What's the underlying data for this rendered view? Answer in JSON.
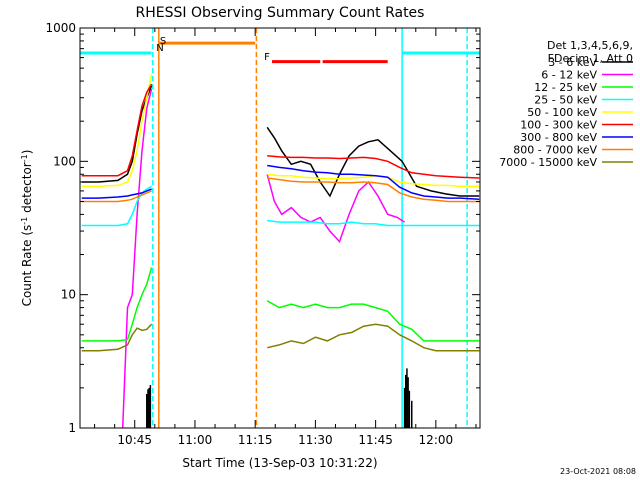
{
  "chart_data": {
    "type": "line",
    "title": "RHESSI Observing Summary Count Rates",
    "xlabel": "Start Time (13-Sep-03 10:31:22)",
    "ylabel": {
      "pre": "Count Rate (s",
      "sup1": "-1",
      "mid": " detector",
      "sup2": "-1",
      "post": ")"
    },
    "xlim": [
      10.5228,
      12.1833
    ],
    "ylim": [
      1,
      1000
    ],
    "yscale": "log",
    "xticks": [
      {
        "x": 10.75,
        "label": "10:45"
      },
      {
        "x": 11.0,
        "label": "11:00"
      },
      {
        "x": 11.25,
        "label": "11:15"
      },
      {
        "x": 11.5,
        "label": "11:30"
      },
      {
        "x": 11.75,
        "label": "11:45"
      },
      {
        "x": 12.0,
        "label": "12:00"
      }
    ],
    "yticks": [
      {
        "y": 1,
        "label": "1"
      },
      {
        "y": 10,
        "label": "10"
      },
      {
        "y": 100,
        "label": "100"
      },
      {
        "y": 1000,
        "label": "1000"
      }
    ],
    "legend": {
      "header1": "Det 1,3,4,5,6,9,",
      "header2": "FDecim 1, Att 0",
      "position": "right-outside"
    },
    "series": [
      {
        "name": "3 - 6 keV",
        "color": "#000000",
        "x": [
          10.53,
          10.6,
          10.68,
          10.72,
          10.74,
          10.76,
          10.78,
          10.8,
          10.82,
          11.3,
          11.33,
          11.36,
          11.4,
          11.44,
          11.48,
          11.52,
          11.56,
          11.6,
          11.64,
          11.68,
          11.72,
          11.76,
          11.8,
          11.86,
          11.92,
          11.98,
          12.04,
          12.1,
          12.18
        ],
        "y": [
          70,
          70,
          72,
          80,
          100,
          160,
          240,
          300,
          370,
          180,
          150,
          120,
          95,
          100,
          95,
          70,
          55,
          80,
          110,
          130,
          140,
          145,
          125,
          100,
          65,
          60,
          57,
          55,
          55
        ]
      },
      {
        "name": "6 - 12 keV",
        "color": "#ff00ff",
        "x": [
          10.7,
          10.72,
          10.74,
          10.76,
          10.78,
          10.8,
          10.82,
          11.3,
          11.33,
          11.36,
          11.4,
          11.44,
          11.48,
          11.52,
          11.56,
          11.6,
          11.64,
          11.68,
          11.72,
          11.76,
          11.8,
          11.84,
          11.87
        ],
        "y": [
          1,
          8,
          10,
          40,
          120,
          250,
          350,
          80,
          50,
          40,
          45,
          38,
          35,
          38,
          30,
          25,
          40,
          60,
          70,
          55,
          40,
          38,
          35
        ]
      },
      {
        "name": "12 - 25 keV",
        "color": "#00ff00",
        "x": [
          10.53,
          10.6,
          10.68,
          10.72,
          10.74,
          10.76,
          10.78,
          10.8,
          10.82,
          11.3,
          11.35,
          11.4,
          11.45,
          11.5,
          11.55,
          11.6,
          11.65,
          11.7,
          11.75,
          11.8,
          11.85,
          11.9,
          11.95,
          12.0,
          12.05,
          12.1,
          12.18
        ],
        "y": [
          4.5,
          4.5,
          4.5,
          4.6,
          6,
          8,
          10,
          12,
          16,
          9,
          8,
          8.5,
          8,
          8.5,
          8,
          8,
          8.5,
          8.5,
          8,
          7.5,
          6,
          5.5,
          4.5,
          4.5,
          4.5,
          4.5,
          4.5
        ]
      },
      {
        "name": "25 - 50 keV",
        "color": "#00ffff",
        "x": [
          10.53,
          10.6,
          10.68,
          10.72,
          10.74,
          10.76,
          10.78,
          10.8,
          10.82,
          11.3,
          11.35,
          11.4,
          11.45,
          11.5,
          11.55,
          11.6,
          11.65,
          11.7,
          11.75,
          11.8,
          11.85,
          11.9,
          11.95,
          12.0,
          12.05,
          12.1,
          12.18
        ],
        "y": [
          33,
          33,
          33,
          34,
          40,
          50,
          58,
          62,
          65,
          36,
          35,
          35,
          35,
          35,
          34,
          34,
          35,
          34,
          34,
          33,
          33,
          33,
          33,
          33,
          33,
          33,
          33
        ]
      },
      {
        "name": "50 - 100 keV",
        "color": "#ffff00",
        "x": [
          10.53,
          10.6,
          10.68,
          10.72,
          10.74,
          10.76,
          10.78,
          10.8,
          10.82,
          11.3,
          11.35,
          11.4,
          11.45,
          11.5,
          11.55,
          11.6,
          11.65,
          11.7,
          11.75,
          11.8,
          11.85,
          11.9,
          11.95,
          12.0,
          12.05,
          12.1,
          12.18
        ],
        "y": [
          65,
          65,
          66,
          70,
          85,
          120,
          200,
          300,
          450,
          80,
          78,
          78,
          76,
          75,
          74,
          74,
          75,
          76,
          78,
          76,
          70,
          68,
          67,
          66,
          66,
          65,
          65
        ]
      },
      {
        "name": "100 - 300 keV",
        "color": "#ff0000",
        "x": [
          10.53,
          10.6,
          10.68,
          10.72,
          10.74,
          10.76,
          10.78,
          10.8,
          10.82,
          11.3,
          11.35,
          11.4,
          11.45,
          11.5,
          11.55,
          11.6,
          11.65,
          11.7,
          11.75,
          11.8,
          11.85,
          11.9,
          11.95,
          12.0,
          12.05,
          12.1,
          12.18
        ],
        "y": [
          78,
          78,
          78,
          85,
          110,
          170,
          260,
          330,
          380,
          110,
          108,
          107,
          107,
          106,
          106,
          105,
          106,
          107,
          105,
          100,
          90,
          82,
          80,
          78,
          77,
          76,
          75
        ]
      },
      {
        "name": "300 - 800 keV",
        "color": "#0000ff",
        "x": [
          10.53,
          10.6,
          10.68,
          10.72,
          10.74,
          10.76,
          10.78,
          10.8,
          10.82,
          11.3,
          11.35,
          11.4,
          11.45,
          11.5,
          11.55,
          11.6,
          11.65,
          11.7,
          11.75,
          11.8,
          11.85,
          11.9,
          11.95,
          12.0,
          12.05,
          12.1,
          12.18
        ],
        "y": [
          53,
          53,
          54,
          55,
          56,
          57,
          58,
          60,
          62,
          93,
          90,
          88,
          85,
          83,
          82,
          80,
          80,
          79,
          78,
          76,
          64,
          58,
          55,
          54,
          53,
          53,
          52
        ]
      },
      {
        "name": "800 - 7000 keV",
        "color": "#ff8000",
        "x": [
          10.53,
          10.6,
          10.68,
          10.72,
          10.74,
          10.76,
          10.78,
          10.8,
          10.82,
          11.3,
          11.35,
          11.4,
          11.45,
          11.5,
          11.55,
          11.6,
          11.65,
          11.7,
          11.75,
          11.8,
          11.85,
          11.9,
          11.95,
          12.0,
          12.05,
          12.1,
          12.18
        ],
        "y": [
          50,
          50,
          50,
          51,
          52,
          54,
          56,
          58,
          60,
          75,
          73,
          71,
          70,
          70,
          70,
          69,
          69,
          70,
          69,
          67,
          58,
          54,
          52,
          51,
          50,
          50,
          50
        ]
      },
      {
        "name": "7000 - 15000 keV",
        "color": "#808000",
        "x": [
          10.53,
          10.6,
          10.68,
          10.72,
          10.74,
          10.76,
          10.78,
          10.8,
          10.82,
          11.3,
          11.35,
          11.4,
          11.45,
          11.5,
          11.55,
          11.6,
          11.65,
          11.7,
          11.75,
          11.8,
          11.85,
          11.9,
          11.95,
          12.0,
          12.05,
          12.1,
          12.18
        ],
        "y": [
          3.8,
          3.8,
          3.9,
          4.2,
          5,
          5.6,
          5.4,
          5.5,
          6,
          4,
          4.2,
          4.5,
          4.3,
          4.8,
          4.5,
          5,
          5.2,
          5.8,
          6,
          5.8,
          5,
          4.5,
          4,
          3.8,
          3.8,
          3.8,
          3.8
        ]
      }
    ],
    "annotations": {
      "s_label": "S",
      "n_label": "N",
      "f_label": "F",
      "timestamp": "23-Oct-2021 08:08",
      "bars": [
        {
          "id": "night-bar-1",
          "color": "#00ffff",
          "x": [
            10.5228,
            10.82
          ],
          "y": 650
        },
        {
          "id": "saa-bar",
          "color": "#ff8000",
          "x": [
            10.85,
            11.25
          ],
          "y": 770
        },
        {
          "id": "flare-bar-1",
          "color": "#ff0000",
          "x": [
            11.32,
            11.52
          ],
          "y": 560
        },
        {
          "id": "flare-bar-2",
          "color": "#ff0000",
          "x": [
            11.53,
            11.8
          ],
          "y": 560
        },
        {
          "id": "night-bar-2",
          "color": "#00ffff",
          "x": [
            11.86,
            12.1833
          ],
          "y": 650
        }
      ],
      "vlines": [
        {
          "id": "night-line-1",
          "color": "#00ffff",
          "x": 10.825,
          "style": "dashed"
        },
        {
          "id": "night-line-2",
          "color": "#00ffff",
          "x": 11.86,
          "style": "solid"
        },
        {
          "id": "night-line-3",
          "color": "#00ffff",
          "x": 12.13,
          "style": "dashed"
        },
        {
          "id": "saa-line-1",
          "color": "#ff8000",
          "x": 10.85,
          "style": "solid"
        },
        {
          "id": "saa-line-2",
          "color": "#ff8000",
          "x": 11.255,
          "style": "dashed"
        }
      ],
      "spikes": [
        {
          "id": "spike-1",
          "x": 10.8,
          "y": 1.8
        },
        {
          "id": "spike-2",
          "x": 10.805,
          "y": 1.95
        },
        {
          "id": "spike-3",
          "x": 10.81,
          "y": 2.0
        },
        {
          "id": "spike-4",
          "x": 10.815,
          "y": 2.1
        },
        {
          "id": "spike-5",
          "x": 11.87,
          "y": 2.0
        },
        {
          "id": "spike-6",
          "x": 11.875,
          "y": 2.5
        },
        {
          "id": "spike-7",
          "x": 11.88,
          "y": 2.8
        },
        {
          "id": "spike-8",
          "x": 11.885,
          "y": 2.4
        },
        {
          "id": "spike-9",
          "x": 11.89,
          "y": 1.9
        },
        {
          "id": "spike-10",
          "x": 11.9,
          "y": 1.6
        }
      ]
    }
  }
}
